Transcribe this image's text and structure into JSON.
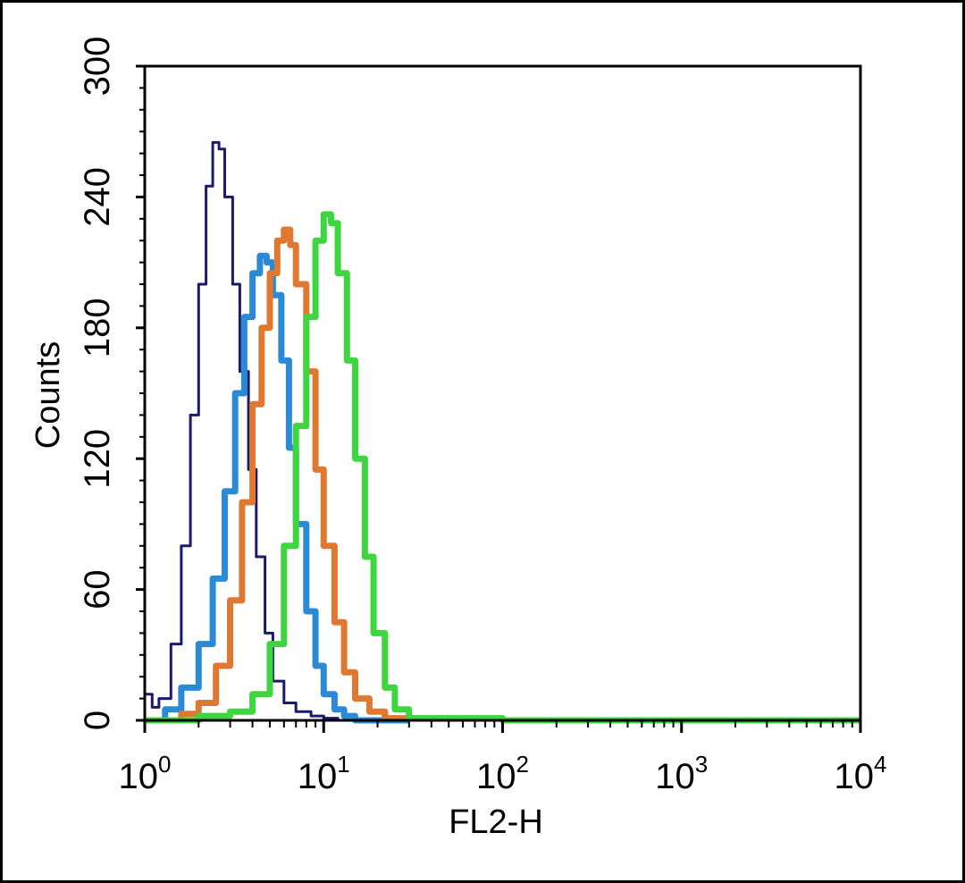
{
  "chart_data": {
    "type": "line",
    "title": "",
    "xlabel": "FL2-H",
    "ylabel": "Counts",
    "xscale": "log",
    "xlim": [
      1,
      10000
    ],
    "ylim": [
      0,
      300
    ],
    "yticks": [
      "0",
      "60",
      "120",
      "180",
      "240",
      "300"
    ],
    "xticks": [
      {
        "base": "10",
        "exp": "0"
      },
      {
        "base": "10",
        "exp": "1"
      },
      {
        "base": "10",
        "exp": "2"
      },
      {
        "base": "10",
        "exp": "3"
      },
      {
        "base": "10",
        "exp": "4"
      }
    ],
    "grid": false,
    "legend": "none",
    "series": [
      {
        "color": "#1a1a6e",
        "stroke": 3,
        "x": [
          1.0,
          1.1,
          1.2,
          1.4,
          1.6,
          1.8,
          2.0,
          2.2,
          2.4,
          2.6,
          2.8,
          3.1,
          3.4,
          3.8,
          4.2,
          4.7,
          5.2,
          6.0,
          7.0,
          8.5,
          10,
          12,
          15,
          20
        ],
        "y": [
          12,
          6,
          10,
          35,
          80,
          140,
          200,
          245,
          265,
          262,
          240,
          200,
          160,
          115,
          75,
          40,
          18,
          8,
          4,
          2,
          1,
          0,
          0,
          0
        ]
      },
      {
        "color": "#2a8ad6",
        "stroke": 7,
        "x": [
          1.0,
          1.3,
          1.6,
          2.0,
          2.4,
          2.8,
          3.2,
          3.6,
          4.0,
          4.4,
          4.8,
          5.2,
          5.8,
          6.4,
          7.0,
          8.0,
          9.0,
          10.0,
          11.5,
          13,
          15,
          20,
          30
        ],
        "y": [
          0,
          5,
          15,
          35,
          65,
          105,
          150,
          185,
          205,
          213,
          210,
          195,
          165,
          125,
          90,
          50,
          25,
          12,
          5,
          2,
          0,
          0,
          0
        ]
      },
      {
        "color": "#e07830",
        "stroke": 7,
        "x": [
          1.0,
          1.6,
          2.0,
          2.5,
          3.0,
          3.5,
          4.0,
          4.5,
          5.0,
          5.5,
          6.0,
          6.5,
          7.0,
          8.0,
          9.0,
          10,
          11.5,
          13,
          15,
          18,
          22,
          30
        ],
        "y": [
          0,
          3,
          8,
          25,
          55,
          100,
          145,
          180,
          205,
          220,
          225,
          218,
          200,
          160,
          115,
          80,
          45,
          22,
          10,
          4,
          1,
          0
        ]
      },
      {
        "color": "#3ed63e",
        "stroke": 7,
        "x": [
          1.0,
          2.0,
          3.0,
          4.0,
          5.0,
          6.0,
          7.0,
          8.0,
          9.0,
          10.0,
          11.0,
          12.0,
          13.5,
          15,
          17,
          19,
          22,
          25,
          30,
          100,
          10000
        ],
        "y": [
          0,
          2,
          4,
          12,
          35,
          80,
          135,
          185,
          220,
          232,
          228,
          205,
          165,
          120,
          75,
          40,
          15,
          5,
          1,
          0,
          0
        ]
      }
    ]
  }
}
